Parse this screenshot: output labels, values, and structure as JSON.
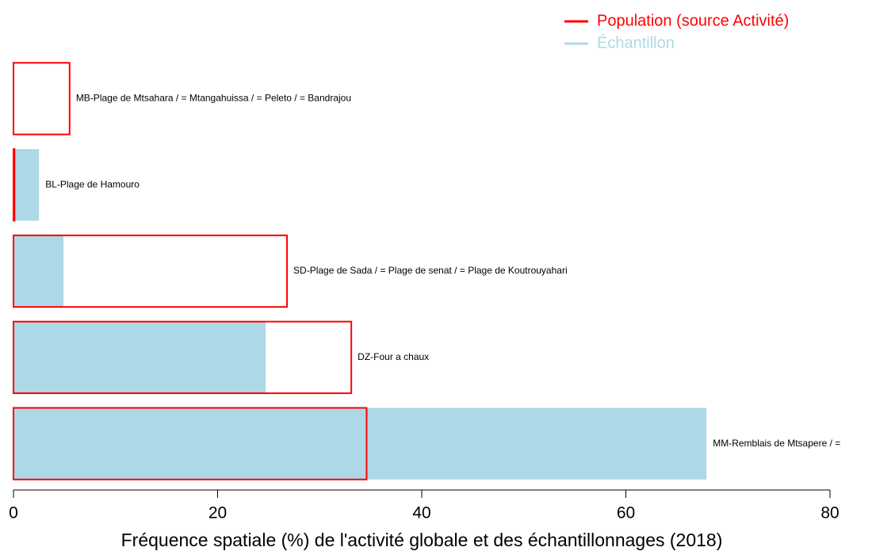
{
  "chart_data": {
    "type": "bar",
    "orientation": "horizontal",
    "categories": [
      "MB-Plage de Mtsahara / = Mtangahuissa / = Peleto / = Bandrajou",
      "BL-Plage de Hamouro",
      "SD-Plage de Sada / = Plage de senat / = Plage de Koutrouyahari",
      "DZ-Four a chaux",
      "MM-Remblais de Mtsapere / ="
    ],
    "series": [
      {
        "name": "Population (source Activité)",
        "color": "#ff0000",
        "style": "outline",
        "values": [
          5.5,
          0.1,
          26.8,
          33.1,
          34.6
        ]
      },
      {
        "name": "Échantillon",
        "color": "#add8e6",
        "style": "fill",
        "values": [
          0,
          2.5,
          4.9,
          24.7,
          67.9
        ]
      }
    ],
    "xlabel": "Fréquence spatiale (%) de l'activité globale et des échantillonnages (2018)",
    "xlim": [
      0,
      80
    ],
    "xticks": [
      0,
      20,
      40,
      60,
      80
    ],
    "legend": "top-right"
  }
}
